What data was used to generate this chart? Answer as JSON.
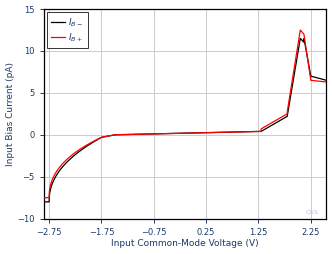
{
  "xlabel": "Input Common-Mode Voltage (V)",
  "ylabel": "Input Bias Current (pA)",
  "xlim": [
    -2.85,
    2.55
  ],
  "ylim": [
    -10,
    15
  ],
  "xticks": [
    -2.75,
    -1.75,
    -0.75,
    0.25,
    1.25,
    2.25
  ],
  "yticks": [
    -10,
    -5,
    0,
    5,
    10,
    15
  ],
  "grid_color": "#cccccc",
  "background_color": "#ffffff",
  "watermark": "Q1S",
  "legend_ib_minus": "I_B-",
  "legend_ib_plus": "I_B+"
}
